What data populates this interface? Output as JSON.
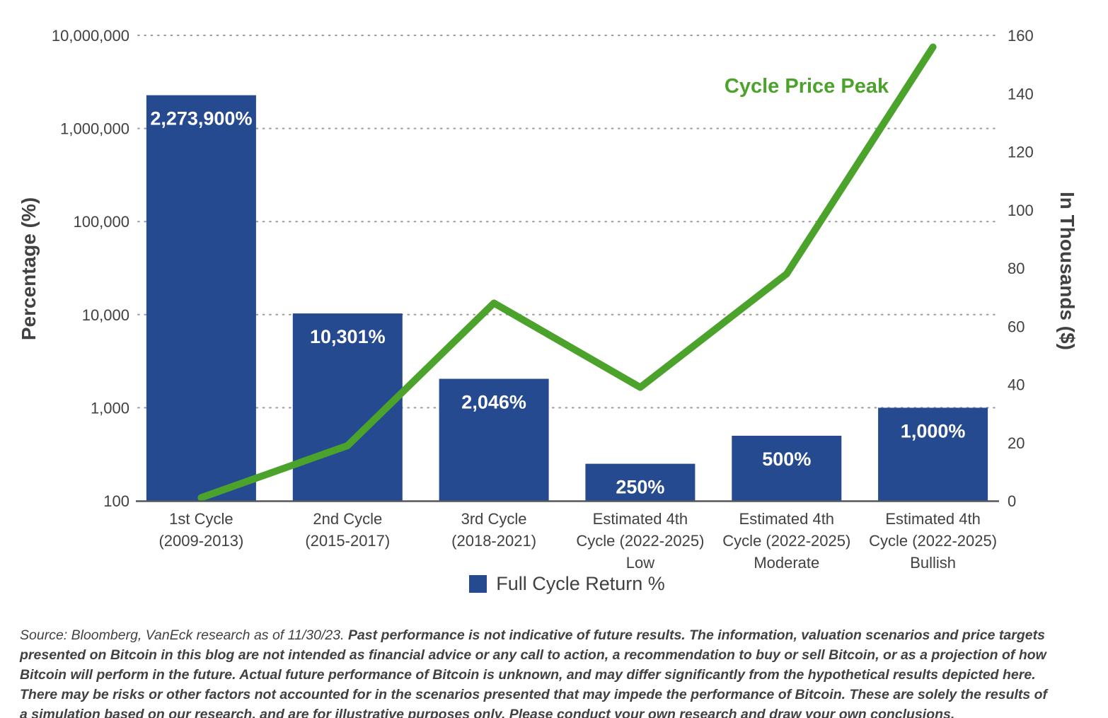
{
  "page": {
    "background": "#ffffff"
  },
  "chart_data": {
    "type": "combo",
    "subtype": "log-bar + linear-line",
    "categories": [
      [
        "1st Cycle",
        "(2009-2013)"
      ],
      [
        "2nd Cycle",
        "(2015-2017)"
      ],
      [
        "3rd Cycle",
        "(2018-2021)"
      ],
      [
        "Estimated 4th",
        "Cycle (2022-2025)",
        "Low"
      ],
      [
        "Estimated 4th",
        "Cycle (2022-2025)",
        "Moderate"
      ],
      [
        "Estimated 4th",
        "Cycle (2022-2025)",
        "Bullish"
      ]
    ],
    "series": [
      {
        "name": "Full Cycle Return %",
        "type": "bar",
        "axis": "left",
        "color": "#264A90",
        "values": [
          2273900,
          10301,
          2046,
          250,
          500,
          1000
        ],
        "value_labels": [
          "2,273,900%",
          "10,301%",
          "2,046%",
          "250%",
          "500%",
          "1,000%"
        ]
      },
      {
        "name": "Cycle Price Peak",
        "type": "line",
        "axis": "right",
        "color": "#4BA32C",
        "values": [
          1.1,
          19,
          68,
          39,
          78,
          156
        ]
      }
    ],
    "left_axis": {
      "title": "Percentage (%)",
      "scale": "log",
      "min": 100,
      "max": 10000000,
      "tick_labels": [
        "10,000,000",
        "1,000,000",
        "100,000",
        "10,000",
        "1,000",
        "100"
      ],
      "tick_values": [
        10000000,
        1000000,
        100000,
        10000,
        1000,
        100
      ]
    },
    "right_axis": {
      "title": "In Thousands ($)",
      "scale": "linear",
      "min": 0,
      "max": 160,
      "tick_labels": [
        "160",
        "140",
        "120",
        "100",
        "80",
        "60",
        "40",
        "20",
        "0"
      ],
      "tick_values": [
        160,
        140,
        120,
        100,
        80,
        60,
        40,
        20,
        0
      ]
    },
    "annotation": {
      "text": "Cycle Price Peak",
      "color": "#4BA32C"
    },
    "legend": [
      {
        "label": "Full Cycle Return %",
        "color": "#264A90"
      }
    ],
    "grid": {
      "style": "dotted",
      "color": "#9B9B9B",
      "direction": "horizontal"
    }
  },
  "footnote": {
    "source": "Source: Bloomberg, VanEck research as of 11/30/23. ",
    "disclaimer": "Past performance is not indicative of future results. The information, valuation scenarios and price targets presented on Bitcoin in this blog are not intended as financial advice or any call to action, a recommendation to buy or sell Bitcoin, or as a projection of how Bitcoin will perform in the future. Actual future performance of Bitcoin is unknown, and may differ significantly from the hypothetical results depicted here. There may be risks or other factors not accounted for in the scenarios presented that may impede the performance of Bitcoin. These are solely the results of a simulation based on our research, and are for illustrative purposes only. Please conduct your own research and draw your own conclusions."
  }
}
